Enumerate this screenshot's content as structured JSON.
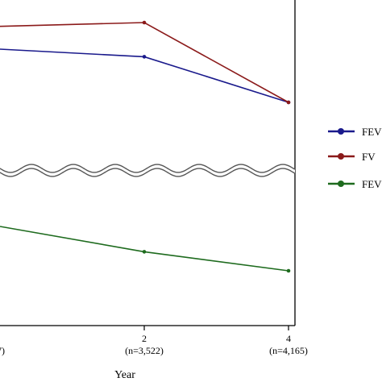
{
  "chart_data": {
    "type": "line",
    "xlabel": "Year",
    "x": [
      2,
      4
    ],
    "x_tick_labels": [
      {
        "value": 2,
        "label": "2",
        "sublabel": "(n=3,522)"
      },
      {
        "value": 4,
        "label": "4",
        "sublabel": "(n=4,165)"
      }
    ],
    "left_partial_sublabel": "7)",
    "axis_break": true,
    "series": [
      {
        "name": "FEV",
        "color": "#1a1a8c",
        "points": [
          {
            "x": 0,
            "y": 0.88
          },
          {
            "x": 2,
            "y": 0.86
          },
          {
            "x": 4,
            "y": 0.74
          }
        ]
      },
      {
        "name": "FV",
        "color": "#8b1a1a",
        "points": [
          {
            "x": 0,
            "y": 0.94
          },
          {
            "x": 2,
            "y": 0.95
          },
          {
            "x": 4,
            "y": 0.74
          }
        ]
      },
      {
        "name": "FEV",
        "color": "#1e6b1e",
        "points": [
          {
            "x": 0,
            "y": 0.14
          },
          {
            "x": 2,
            "y": 0.1
          },
          {
            "x": 4,
            "y": 0.07
          }
        ]
      }
    ],
    "legend_placement": "right",
    "grid": false
  }
}
